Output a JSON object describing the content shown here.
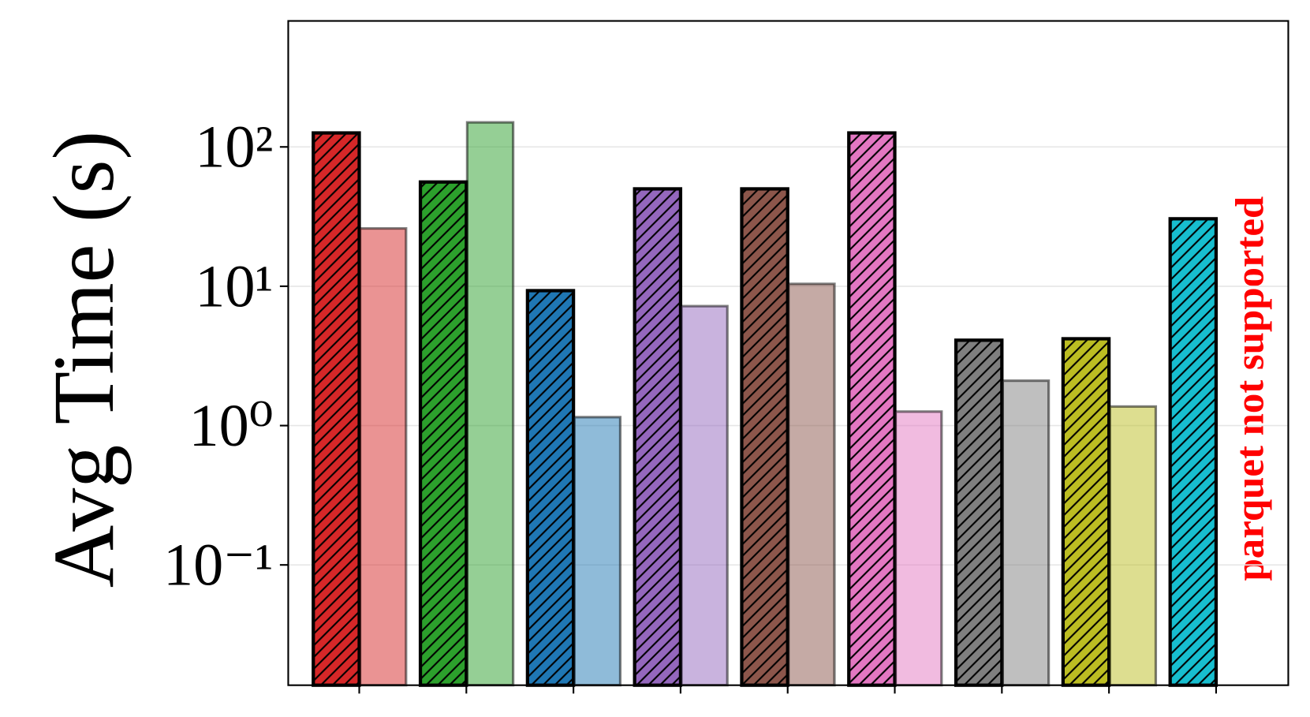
{
  "chart_data": {
    "type": "bar",
    "ylabel": "Avg Time (s)",
    "annotation": "parquet not supported",
    "categories": [
      null,
      null,
      null,
      null,
      null,
      null,
      null,
      null,
      null
    ],
    "yscale": "log",
    "ylim": [
      0.0137,
      802
    ],
    "yticks": [
      {
        "value": 0.1,
        "label": "10⁻¹"
      },
      {
        "value": 1,
        "label": "10⁰"
      },
      {
        "value": 10,
        "label": "10¹"
      },
      {
        "value": 100,
        "label": "10²"
      }
    ],
    "grid": true,
    "series": [
      {
        "hatch": true,
        "opacity": 1,
        "colors": [
          "#d62728",
          "#2ca02c",
          "#1f77b4",
          "#9467bd",
          "#8c564b",
          "#e377c2",
          "#7f7f7f",
          "#bcbd22",
          "#17becf"
        ],
        "values": [
          126,
          56,
          9.3,
          50,
          50,
          126,
          4.1,
          4.2,
          30.5
        ]
      },
      {
        "hatch": false,
        "opacity": 0.5,
        "colors": [
          "#d62728",
          "#2ca02c",
          "#1f77b4",
          "#9467bd",
          "#8c564b",
          "#e377c2",
          "#7f7f7f",
          "#bcbd22",
          "#17becf"
        ],
        "values": [
          26,
          150,
          1.15,
          7.2,
          10.4,
          1.26,
          2.1,
          1.37,
          null
        ]
      }
    ]
  }
}
